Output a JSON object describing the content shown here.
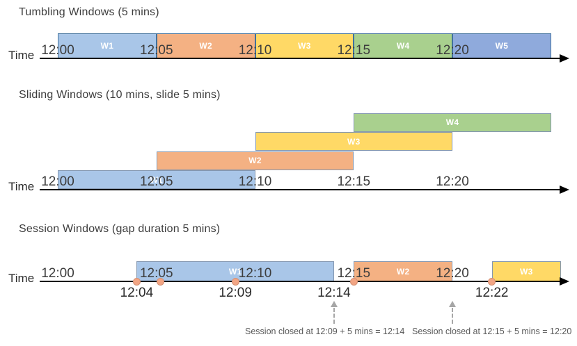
{
  "palette": {
    "blue": "#A9C6E8",
    "orange": "#F4B183",
    "yellow": "#FFD966",
    "green": "#A9D08E",
    "blue2": "#8FAADC",
    "border_strong": "#41719C",
    "border_soft": "#8497B0",
    "dot_fill": "#F2A584",
    "axis_color": "#000000",
    "text_color": "#3D3D3D",
    "note_color": "#595959",
    "dashed_color": "#A6A6A6"
  },
  "axis_label": "Time",
  "sections": [
    {
      "id": "tumbling",
      "title": "Tumbling Windows (5 mins)",
      "ticks": [
        {
          "t": 0,
          "label": "12:00"
        },
        {
          "t": 5,
          "label": "12:05"
        },
        {
          "t": 10,
          "label": "12:10"
        },
        {
          "t": 15,
          "label": "12:15"
        },
        {
          "t": 20,
          "label": "12:20"
        }
      ],
      "windows": [
        {
          "name": "W1",
          "start": 0,
          "end": 5,
          "color": "blue"
        },
        {
          "name": "W2",
          "start": 5,
          "end": 10,
          "color": "orange"
        },
        {
          "name": "W3",
          "start": 10,
          "end": 15,
          "color": "yellow"
        },
        {
          "name": "W4",
          "start": 15,
          "end": 20,
          "color": "green"
        },
        {
          "name": "W5",
          "start": 20,
          "end": 25,
          "color": "blue2"
        }
      ]
    },
    {
      "id": "sliding",
      "title": "Sliding Windows (10 mins, slide 5 mins)",
      "ticks": [
        {
          "t": 0,
          "label": "12:00"
        },
        {
          "t": 5,
          "label": "12:05"
        },
        {
          "t": 10,
          "label": "12:10"
        },
        {
          "t": 15,
          "label": "12:15"
        },
        {
          "t": 20,
          "label": "12:20"
        }
      ],
      "windows": [
        {
          "name": "W1",
          "start": 0,
          "end": 10,
          "color": "blue",
          "row": 0
        },
        {
          "name": "W2",
          "start": 5,
          "end": 15,
          "color": "orange",
          "row": 1
        },
        {
          "name": "W3",
          "start": 10,
          "end": 20,
          "color": "yellow",
          "row": 2
        },
        {
          "name": "W4",
          "start": 15,
          "end": 25,
          "color": "green",
          "row": 3
        }
      ]
    },
    {
      "id": "session",
      "title": "Session Windows (gap duration 5 mins)",
      "ticks": [
        {
          "t": 0,
          "label": "12:00"
        },
        {
          "t": 5,
          "label": "12:05"
        },
        {
          "t": 10,
          "label": "12:10"
        },
        {
          "t": 15,
          "label": "12:15"
        },
        {
          "t": 20,
          "label": "12:20"
        }
      ],
      "windows": [
        {
          "name": "W1",
          "start": 4,
          "end": 14,
          "color": "blue"
        },
        {
          "name": "W2",
          "start": 15,
          "end": 20,
          "color": "orange"
        },
        {
          "name": "W3",
          "start": 22,
          "end": 25.5,
          "color": "yellow"
        }
      ],
      "events": [
        {
          "t": 4,
          "label": "12:04"
        },
        {
          "t": 5.2,
          "label": ""
        },
        {
          "t": 9,
          "label": "12:09"
        },
        {
          "t": 14,
          "label": "12:14",
          "dot": false
        },
        {
          "t": 15,
          "label": ""
        },
        {
          "t": 22,
          "label": "12:22"
        }
      ],
      "callouts": [
        {
          "arrow_t": 14,
          "text": "Session closed at 12:09 + 5 mins = 12:14"
        },
        {
          "arrow_t": 20,
          "text": "Session closed at 12:15 + 5 mins = 12:20"
        }
      ]
    }
  ]
}
